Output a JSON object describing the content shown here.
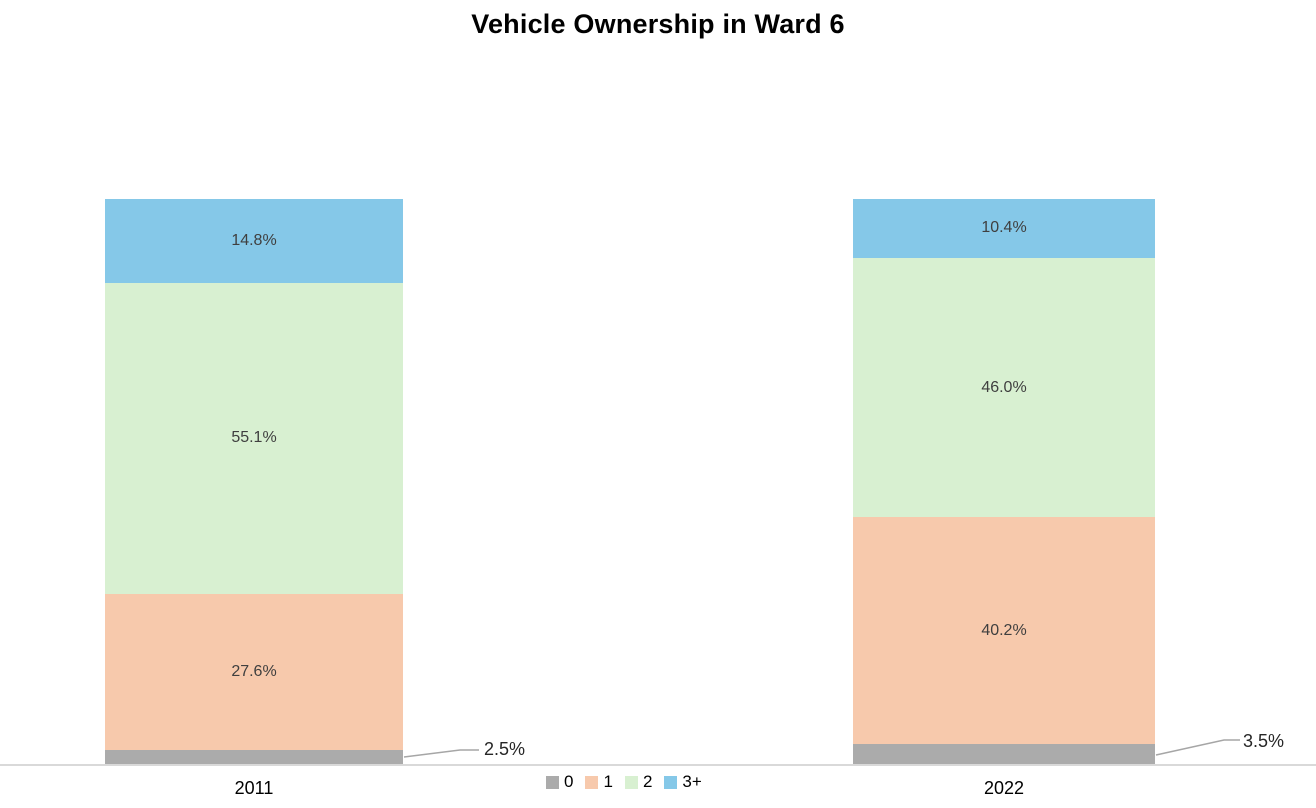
{
  "chart_data": {
    "type": "bar",
    "variant": "stacked-100-percent",
    "title": "Vehicle Ownership in Ward 6",
    "categories": [
      "2011",
      "2022"
    ],
    "series": [
      {
        "name": "0",
        "color": "#ABABAB",
        "values": [
          2.5,
          3.5
        ],
        "labels": [
          "2.5%",
          "3.5%"
        ],
        "label_placement": "callout"
      },
      {
        "name": "1",
        "color": "#F7C9AC",
        "values": [
          27.6,
          40.2
        ],
        "labels": [
          "27.6%",
          "40.2%"
        ],
        "label_placement": "inside"
      },
      {
        "name": "2",
        "color": "#D8F0D1",
        "values": [
          55.1,
          46.0
        ],
        "labels": [
          "55.1%",
          "46.0%"
        ],
        "label_placement": "inside"
      },
      {
        "name": "3+",
        "color": "#85C8E8",
        "values": [
          14.8,
          10.4
        ],
        "labels": [
          "14.8%",
          "10.4%"
        ],
        "label_placement": "inside"
      }
    ],
    "ylim": [
      0,
      100
    ],
    "grid": false,
    "legend_position": "bottom",
    "label_color": "#3F3F3F",
    "axis_line_color": "#D9D9D9",
    "leader_line_color": "#A6A6A6"
  }
}
